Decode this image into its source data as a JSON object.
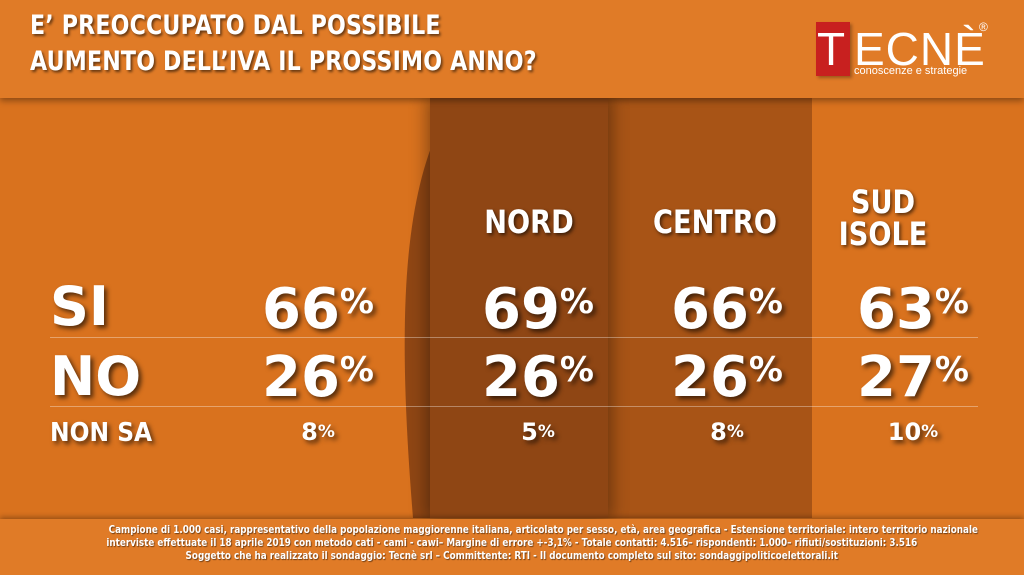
{
  "header": {
    "title_line1": "E’ PREOCCUPATO DAL POSSIBILE",
    "title_line2": "AUMENTO DELL’IVA IL PROSSIMO ANNO?"
  },
  "logo": {
    "first_letter": "T",
    "rest": "ECNÈ",
    "registered": "®",
    "tagline": "conoscenze e strategie"
  },
  "colors": {
    "background": "#d9721e",
    "header": "#e07b27",
    "nord_band": "#8f4614",
    "centro_band": "#a85416",
    "logo_red": "#c8201f"
  },
  "chart_data": {
    "type": "table",
    "columns": [
      "",
      "NORD",
      "CENTRO",
      "SUD ISOLE"
    ],
    "column_heads": {
      "nord": "NORD",
      "centro": "CENTRO",
      "sud_line1": "SUD",
      "sud_line2": "ISOLE"
    },
    "rows": [
      {
        "label": "SI",
        "values": [
          66,
          69,
          66,
          63
        ]
      },
      {
        "label": "NO",
        "values": [
          26,
          26,
          26,
          27
        ]
      },
      {
        "label": "NON SA",
        "values": [
          8,
          5,
          8,
          10
        ]
      }
    ],
    "unit": "%"
  },
  "footer": {
    "line1": "Campione di 1.000 casi, rappresentativo della popolazione maggiorenne italiana, articolato per sesso, età, area geografica - Estensione territoriale: intero territorio nazionale",
    "line2": "interviste effettuate il 18 aprile 2019 con metodo cati - cami - cawi– Margine di errore +-3,1% - Totale contatti: 4.516– rispondenti: 1.000– rifiuti/sostituzioni: 3.516",
    "line3": "Soggetto che ha realizzato il sondaggio: Tecnè srl – Committente: RTI - Il documento completo sul sito: sondaggipoliticoelettorali.it"
  }
}
